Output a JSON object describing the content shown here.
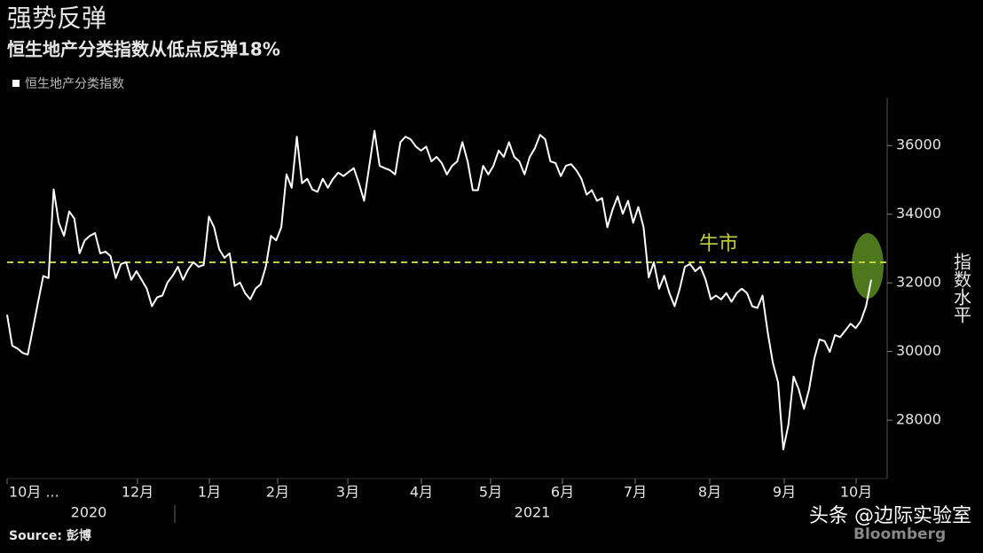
{
  "chart_data": {
    "type": "line",
    "title": "强势反弹",
    "subtitle": "恒生地产分类指数从低点反弹18%",
    "ylabel": "指数水平",
    "series": [
      {
        "name": "恒生地产分类指数",
        "color": "#ffffff",
        "values": [
          31070,
          30170,
          30090,
          29960,
          29910,
          30680,
          31450,
          32200,
          32140,
          34720,
          33750,
          33370,
          34080,
          33870,
          32860,
          33240,
          33370,
          33450,
          32860,
          32910,
          32780,
          32140,
          32550,
          32600,
          32090,
          32340,
          32090,
          31830,
          31320,
          31580,
          31630,
          32010,
          32210,
          32470,
          32090,
          32390,
          32600,
          32470,
          32520,
          33930,
          33620,
          32980,
          32730,
          32860,
          31910,
          32010,
          31700,
          31520,
          31830,
          31960,
          32470,
          33370,
          33240,
          33620,
          35160,
          34770,
          36260,
          34900,
          35030,
          34720,
          34650,
          35030,
          34770,
          35030,
          35210,
          35110,
          35230,
          35340,
          34900,
          34390,
          35410,
          36430,
          35410,
          35340,
          35280,
          35160,
          36100,
          36260,
          36180,
          35970,
          35850,
          35970,
          35540,
          35670,
          35490,
          35160,
          35410,
          35540,
          36100,
          35540,
          34700,
          34700,
          35410,
          35160,
          35410,
          35850,
          35670,
          36100,
          35670,
          35540,
          35160,
          35670,
          35920,
          36310,
          36180,
          35540,
          35490,
          35110,
          35410,
          35460,
          35280,
          35030,
          34570,
          34700,
          34390,
          34470,
          33620,
          34130,
          34520,
          34010,
          34390,
          33750,
          34210,
          33620,
          32160,
          32600,
          31830,
          32210,
          31700,
          31320,
          31830,
          32470,
          32550,
          32340,
          32470,
          32090,
          31520,
          31630,
          31520,
          31700,
          31450,
          31700,
          31830,
          31700,
          31320,
          31270,
          31630,
          30550,
          29660,
          29100,
          27150,
          27870,
          29270,
          28900,
          28330,
          28900,
          29790,
          30350,
          30300,
          29990,
          30480,
          30420,
          30610,
          30810,
          30680,
          30890,
          31320,
          32090
        ]
      }
    ],
    "ylim": [
      26300,
      37400
    ],
    "yticks": [
      28000,
      30000,
      32000,
      34000,
      36000
    ],
    "xtick_labels": [
      "10月 ...",
      "12月",
      "1月",
      "2月",
      "3月",
      "4月",
      "5月",
      "6月",
      "7月",
      "8月",
      "9月",
      "10月"
    ],
    "year_labels": [
      "2020",
      "2021"
    ],
    "reference_line": {
      "value": 32600,
      "label": "牛市",
      "color": "#c3cf3a"
    },
    "source": "Source: 彭博",
    "watermark": "头条 @边际实验室",
    "brand": "Bloomberg"
  }
}
